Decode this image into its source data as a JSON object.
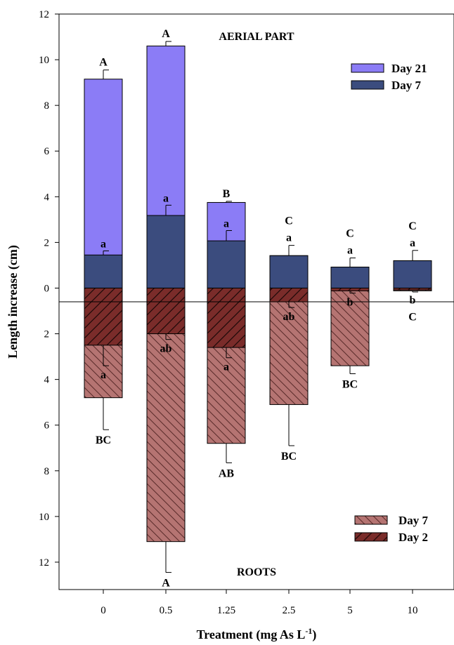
{
  "chart_data": {
    "type": "bar",
    "stacked": true,
    "diverging": true,
    "categories": [
      "0",
      "0.5",
      "1.25",
      "2.5",
      "5",
      "10"
    ],
    "xlabel": "Treatment (mg As L",
    "xlabel_sup": "-1",
    "xlabel_close": ")",
    "ylabel": "Length increase (cm)",
    "ylim": [
      -13.2,
      12
    ],
    "yticks": [
      12,
      10,
      8,
      6,
      4,
      2,
      0,
      2,
      4,
      6,
      8,
      10,
      12
    ],
    "grid": false,
    "annotations": {
      "top": "AERIAL PART",
      "bottom": "ROOTS"
    },
    "aerial": {
      "legend_position": "top-right",
      "series": [
        {
          "name": "Day 21",
          "color": "#8B7CF6",
          "values": [
            9.15,
            10.6,
            3.75,
            1.42,
            0.92,
            1.2
          ],
          "err": [
            0.4,
            0.2,
            0.05,
            0.45,
            0.7,
            0.45
          ],
          "labels": [
            "A",
            "A",
            "B",
            "C",
            "C",
            "C"
          ]
        },
        {
          "name": "Day 7",
          "color": "#3B4C7E",
          "values": [
            1.45,
            3.18,
            2.07,
            1.42,
            0.92,
            1.2
          ],
          "err": [
            0.18,
            0.45,
            0.45,
            0.45,
            0.4,
            0.45
          ],
          "labels": [
            "a",
            "a",
            "a",
            "a",
            "a",
            "a"
          ]
        }
      ]
    },
    "roots": {
      "legend_position": "bottom-right",
      "series": [
        {
          "name": "Day 7",
          "color": "#B57472",
          "values": [
            4.8,
            11.1,
            6.8,
            5.1,
            3.4,
            0.12
          ],
          "err": [
            1.4,
            1.35,
            0.85,
            1.8,
            0.35,
            0.05
          ],
          "labels": [
            "BC",
            "A",
            "AB",
            "BC",
            "BC",
            "C"
          ]
        },
        {
          "name": "Day 2",
          "color": "#7A2C2A",
          "values": [
            2.5,
            2.0,
            2.6,
            0.6,
            0.12,
            0.08
          ],
          "err": [
            0.9,
            0.25,
            0.45,
            0.25,
            0.1,
            0.05
          ],
          "labels": [
            "a",
            "ab",
            "a",
            "ab",
            "b",
            "b"
          ]
        }
      ]
    }
  }
}
